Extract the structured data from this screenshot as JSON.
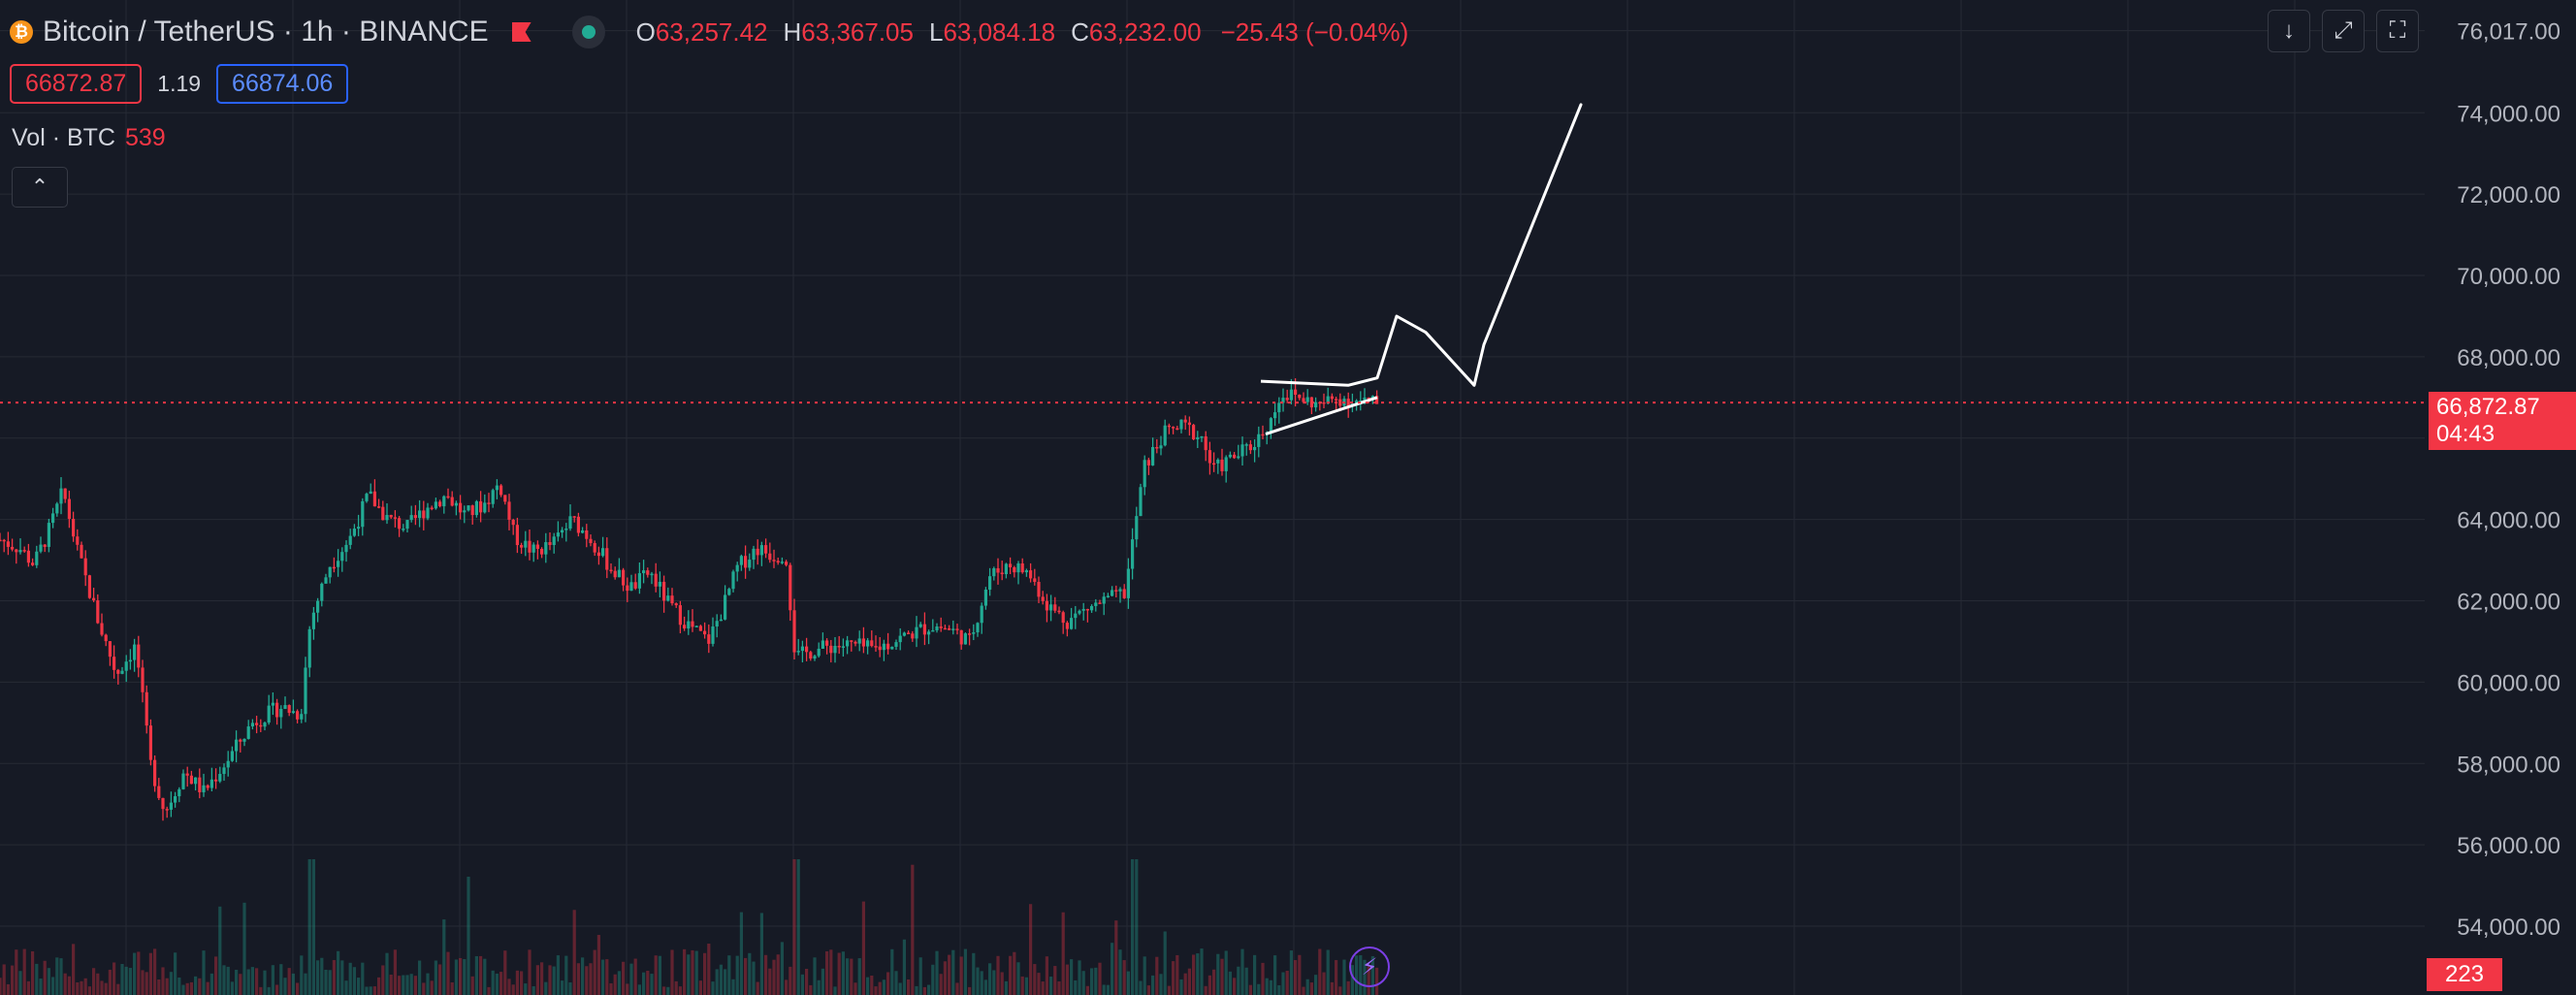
{
  "header": {
    "symbol": "Bitcoin / TetherUS · 1h · BINANCE",
    "coin_glyph": "₿",
    "ohlc": [
      {
        "key": "O",
        "value": "63,257.42"
      },
      {
        "key": "H",
        "value": "63,367.05"
      },
      {
        "key": "L",
        "value": "63,084.18"
      },
      {
        "key": "C",
        "value": "63,232.00"
      }
    ],
    "change": "−25.43 (−0.04%)",
    "sell_price": "66872.87",
    "spread": "1.19",
    "buy_price": "66874.06"
  },
  "volume_legend": {
    "label": "Vol · BTC",
    "value": "539"
  },
  "toolbar": {
    "collapse_label": "⌃",
    "down_label": "↓",
    "fullscreen_label": "⤢",
    "snapshot_label": "⛶"
  },
  "price_tag": {
    "price": "66,872.87",
    "countdown": "04:43"
  },
  "volume_tag": "223",
  "bolt_label": "⚡",
  "colors": {
    "up": "#22ab94",
    "down": "#f23645",
    "background": "#161a25",
    "grid": "#262a35",
    "axis_text": "#b2b5be",
    "drawing": "#ffffff"
  },
  "chart_data": {
    "type": "candlestick",
    "title": "Bitcoin / TetherUS · 1h · BINANCE",
    "y_ticks": [
      "76,017.00",
      "74,000.00",
      "72,000.00",
      "70,000.00",
      "68,000.00",
      "66,000.00",
      "64,000.00",
      "62,000.00",
      "60,000.00",
      "58,000.00",
      "56,000.00",
      "54,000.00"
    ],
    "ylim": [
      53500,
      76200
    ],
    "grid": true,
    "current_price": 66872.87,
    "close_path": [
      [
        0,
        63500
      ],
      [
        0.02,
        63300
      ],
      [
        0.035,
        62900
      ],
      [
        0.05,
        63700
      ],
      [
        0.065,
        64700
      ],
      [
        0.08,
        63200
      ],
      [
        0.1,
        61600
      ],
      [
        0.12,
        60200
      ],
      [
        0.14,
        60900
      ],
      [
        0.155,
        58000
      ],
      [
        0.17,
        56800
      ],
      [
        0.19,
        57800
      ],
      [
        0.21,
        57300
      ],
      [
        0.235,
        58100
      ],
      [
        0.26,
        59000
      ],
      [
        0.29,
        59400
      ],
      [
        0.31,
        59200
      ],
      [
        0.32,
        61500
      ],
      [
        0.34,
        62900
      ],
      [
        0.36,
        63500
      ],
      [
        0.38,
        64600
      ],
      [
        0.4,
        64000
      ],
      [
        0.42,
        63800
      ],
      [
        0.44,
        64300
      ],
      [
        0.46,
        64600
      ],
      [
        0.48,
        64100
      ],
      [
        0.5,
        64400
      ],
      [
        0.515,
        64900
      ],
      [
        0.53,
        63600
      ],
      [
        0.55,
        63200
      ],
      [
        0.57,
        63400
      ],
      [
        0.59,
        64000
      ],
      [
        0.61,
        63500
      ],
      [
        0.63,
        62800
      ],
      [
        0.65,
        62300
      ],
      [
        0.67,
        62700
      ],
      [
        0.69,
        61900
      ],
      [
        0.71,
        61400
      ],
      [
        0.73,
        61000
      ],
      [
        0.745,
        61800
      ],
      [
        0.76,
        62800
      ],
      [
        0.78,
        63300
      ],
      [
        0.8,
        63100
      ],
      [
        0.81,
        63200
      ],
      [
        0.82,
        60600
      ],
      [
        0.84,
        60800
      ],
      [
        0.86,
        60900
      ],
      [
        0.88,
        60900
      ],
      [
        0.9,
        60800
      ],
      [
        0.92,
        61000
      ],
      [
        0.94,
        61200
      ],
      [
        0.96,
        61400
      ],
      [
        0.98,
        61300
      ],
      [
        1.0,
        61000
      ],
      [
        1.02,
        62600
      ],
      [
        1.04,
        62900
      ],
      [
        1.06,
        62700
      ],
      [
        1.08,
        61900
      ],
      [
        1.1,
        61500
      ],
      [
        1.12,
        61800
      ],
      [
        1.14,
        62000
      ],
      [
        1.16,
        62200
      ],
      [
        1.17,
        63800
      ],
      [
        1.18,
        65300
      ],
      [
        1.2,
        66100
      ],
      [
        1.22,
        66300
      ],
      [
        1.24,
        66000
      ],
      [
        1.25,
        65200
      ],
      [
        1.27,
        65500
      ],
      [
        1.29,
        65800
      ],
      [
        1.31,
        66400
      ],
      [
        1.32,
        67100
      ],
      [
        1.34,
        67000
      ],
      [
        1.36,
        66800
      ],
      [
        1.38,
        67000
      ],
      [
        1.4,
        66900
      ],
      [
        1.42,
        66850
      ]
    ],
    "drawing_path": [
      [
        1.3,
        67400
      ],
      [
        1.39,
        67300
      ],
      [
        1.42,
        67480
      ],
      [
        1.44,
        69000
      ],
      [
        1.47,
        68600
      ],
      [
        1.52,
        67300
      ]
    ],
    "drawing_triangle_lower": [
      [
        1.305,
        66100
      ],
      [
        1.42,
        67000
      ]
    ],
    "drawing_breakout": [
      [
        1.52,
        67300
      ],
      [
        1.53,
        68300
      ],
      [
        1.63,
        74200
      ]
    ]
  }
}
